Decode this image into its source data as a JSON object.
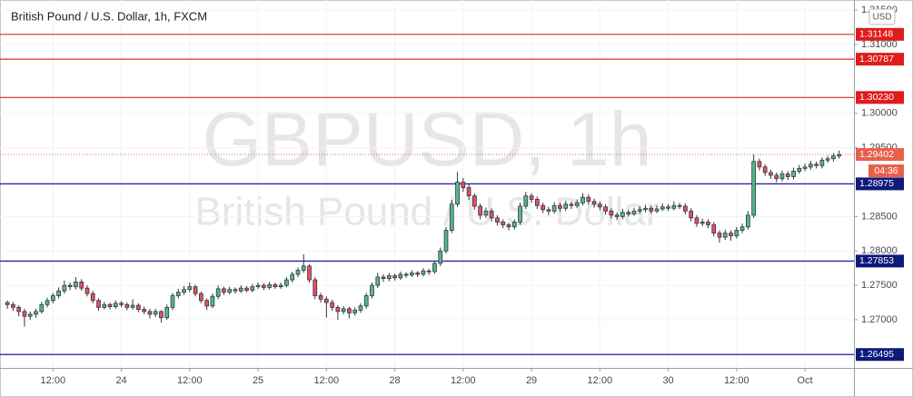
{
  "chart_data": {
    "type": "candlestick",
    "title": "British Pound / U.S. Dollar, 1h, FXCM",
    "currency": "USD",
    "watermark": {
      "symbol": "GBPUSD, 1h",
      "description": "British Pound / U.S. Dollar"
    },
    "up_color": "#53b987",
    "down_color": "#eb4d5c",
    "wick_color": "#2f3640",
    "xlim": [
      -1.3,
      148.6
    ],
    "xticks": [
      {
        "value": 8,
        "label": "12:00"
      },
      {
        "value": 20,
        "label": "24"
      },
      {
        "value": 32,
        "label": "12:00"
      },
      {
        "value": 44,
        "label": "25"
      },
      {
        "value": 56,
        "label": "12:00"
      },
      {
        "value": 68,
        "label": "28"
      },
      {
        "value": 80,
        "label": "12:00"
      },
      {
        "value": 92,
        "label": "29"
      },
      {
        "value": 104,
        "label": "12:00"
      },
      {
        "value": 116,
        "label": "30"
      },
      {
        "value": 128,
        "label": "12:00"
      },
      {
        "value": 140,
        "label": "Oct"
      }
    ],
    "ylim": [
      1.263,
      1.31647
    ],
    "yticks": [
      {
        "value": 1.27,
        "label": "1.27000"
      },
      {
        "value": 1.275,
        "label": "1.27500"
      },
      {
        "value": 1.28,
        "label": "1.28000"
      },
      {
        "value": 1.285,
        "label": "1.28500"
      },
      {
        "value": 1.295,
        "label": "1.29500"
      },
      {
        "value": 1.3,
        "label": "1.30000"
      },
      {
        "value": 1.31,
        "label": "1.31000"
      },
      {
        "value": 1.315,
        "label": "1.31500"
      }
    ],
    "grid": true,
    "levels": {
      "values": [
        1.31148,
        1.30787,
        1.3023,
        1.28975,
        1.27853,
        1.26495
      ],
      "value_labels": [
        "1.31148",
        "1.30787",
        "1.30230",
        "1.28975",
        "1.27853",
        "1.26495"
      ],
      "colors": [
        "#d32f2f",
        "#d32f2f",
        "#d32f2f",
        "#1c1c9c",
        "#1c1c9c",
        "#1c1c9c"
      ],
      "label_colors": [
        "#e01b1b",
        "#e01b1b",
        "#e01b1b",
        "#0d1a7a",
        "#0d1a7a",
        "#0d1a7a"
      ]
    },
    "last_price": 1.29402,
    "last_price_color": "#e8604c",
    "countdown": "04:36",
    "candles": [
      [
        1.2725,
        1.2728,
        1.2716,
        1.2722
      ],
      [
        1.2722,
        1.2726,
        1.2713,
        1.2718
      ],
      [
        1.2718,
        1.2721,
        1.2705,
        1.2712
      ],
      [
        1.2712,
        1.2716,
        1.269,
        1.2705
      ],
      [
        1.2705,
        1.2712,
        1.27,
        1.2708
      ],
      [
        1.2708,
        1.2716,
        1.2703,
        1.2712
      ],
      [
        1.2712,
        1.2726,
        1.2709,
        1.2722
      ],
      [
        1.2722,
        1.2732,
        1.2718,
        1.2728
      ],
      [
        1.2728,
        1.2739,
        1.2724,
        1.2735
      ],
      [
        1.2735,
        1.2747,
        1.2731,
        1.2742
      ],
      [
        1.2742,
        1.2757,
        1.2738,
        1.275
      ],
      [
        1.275,
        1.2754,
        1.2743,
        1.2748
      ],
      [
        1.2748,
        1.2762,
        1.2744,
        1.2755
      ],
      [
        1.2755,
        1.2759,
        1.2742,
        1.2746
      ],
      [
        1.2746,
        1.275,
        1.2734,
        1.2738
      ],
      [
        1.2738,
        1.2742,
        1.2724,
        1.2728
      ],
      [
        1.2728,
        1.2731,
        1.2713,
        1.2718
      ],
      [
        1.2718,
        1.2726,
        1.2715,
        1.2722
      ],
      [
        1.2722,
        1.2725,
        1.2715,
        1.2719
      ],
      [
        1.2719,
        1.2728,
        1.2716,
        1.2724
      ],
      [
        1.2724,
        1.2727,
        1.2718,
        1.2722
      ],
      [
        1.2722,
        1.2725,
        1.2714,
        1.2718
      ],
      [
        1.2718,
        1.273,
        1.2715,
        1.2721
      ],
      [
        1.2721,
        1.2724,
        1.2711,
        1.2715
      ],
      [
        1.2715,
        1.2719,
        1.2708,
        1.2712
      ],
      [
        1.2712,
        1.2716,
        1.2702,
        1.2708
      ],
      [
        1.2708,
        1.2716,
        1.2704,
        1.2712
      ],
      [
        1.2712,
        1.2714,
        1.2696,
        1.2703
      ],
      [
        1.2703,
        1.2722,
        1.27,
        1.2718
      ],
      [
        1.2718,
        1.2739,
        1.2714,
        1.2735
      ],
      [
        1.2735,
        1.2745,
        1.2731,
        1.274
      ],
      [
        1.274,
        1.2749,
        1.2736,
        1.2744
      ],
      [
        1.2744,
        1.2754,
        1.274,
        1.2748
      ],
      [
        1.2748,
        1.2751,
        1.2734,
        1.2738
      ],
      [
        1.2738,
        1.2741,
        1.2724,
        1.2728
      ],
      [
        1.2728,
        1.2731,
        1.2714,
        1.272
      ],
      [
        1.272,
        1.2738,
        1.2717,
        1.2734
      ],
      [
        1.2734,
        1.275,
        1.273,
        1.2745
      ],
      [
        1.2745,
        1.2748,
        1.2736,
        1.274
      ],
      [
        1.274,
        1.2748,
        1.2737,
        1.2744
      ],
      [
        1.2744,
        1.2747,
        1.2738,
        1.2742
      ],
      [
        1.2742,
        1.275,
        1.2739,
        1.2746
      ],
      [
        1.2746,
        1.2749,
        1.274,
        1.2743
      ],
      [
        1.2743,
        1.2752,
        1.274,
        1.2748
      ],
      [
        1.2748,
        1.2754,
        1.2745,
        1.275
      ],
      [
        1.275,
        1.2753,
        1.2743,
        1.2747
      ],
      [
        1.2747,
        1.2755,
        1.2744,
        1.2751
      ],
      [
        1.2751,
        1.2754,
        1.2745,
        1.2748
      ],
      [
        1.2748,
        1.2754,
        1.2745,
        1.275
      ],
      [
        1.275,
        1.2762,
        1.2747,
        1.2758
      ],
      [
        1.2758,
        1.277,
        1.2754,
        1.2766
      ],
      [
        1.2766,
        1.2776,
        1.2762,
        1.2772
      ],
      [
        1.2772,
        1.2795,
        1.2768,
        1.2778
      ],
      [
        1.2778,
        1.2781,
        1.2754,
        1.2758
      ],
      [
        1.2758,
        1.2762,
        1.273,
        1.2735
      ],
      [
        1.2735,
        1.2739,
        1.2725,
        1.273
      ],
      [
        1.273,
        1.2734,
        1.2703,
        1.2725
      ],
      [
        1.2725,
        1.2729,
        1.2713,
        1.2718
      ],
      [
        1.2718,
        1.2721,
        1.27,
        1.2712
      ],
      [
        1.2712,
        1.272,
        1.2708,
        1.2716
      ],
      [
        1.2716,
        1.2719,
        1.2702,
        1.271
      ],
      [
        1.271,
        1.2718,
        1.2706,
        1.2714
      ],
      [
        1.2714,
        1.2724,
        1.271,
        1.272
      ],
      [
        1.272,
        1.2739,
        1.2716,
        1.2735
      ],
      [
        1.2735,
        1.2754,
        1.2731,
        1.275
      ],
      [
        1.275,
        1.2768,
        1.2746,
        1.2762
      ],
      [
        1.2762,
        1.2766,
        1.2755,
        1.276
      ],
      [
        1.276,
        1.2768,
        1.2756,
        1.2764
      ],
      [
        1.2764,
        1.2767,
        1.2757,
        1.2761
      ],
      [
        1.2761,
        1.277,
        1.2758,
        1.2766
      ],
      [
        1.2766,
        1.2769,
        1.2761,
        1.2765
      ],
      [
        1.2765,
        1.2772,
        1.2762,
        1.2768
      ],
      [
        1.2768,
        1.2771,
        1.2762,
        1.2766
      ],
      [
        1.2766,
        1.2775,
        1.2763,
        1.2771
      ],
      [
        1.2771,
        1.2774,
        1.2765,
        1.277
      ],
      [
        1.277,
        1.2786,
        1.2767,
        1.2782
      ],
      [
        1.2782,
        1.2805,
        1.2778,
        1.28
      ],
      [
        1.28,
        1.2835,
        1.2796,
        1.283
      ],
      [
        1.283,
        1.2874,
        1.2826,
        1.2868
      ],
      [
        1.2868,
        1.2915,
        1.2864,
        1.29
      ],
      [
        1.29,
        1.2906,
        1.2886,
        1.2892
      ],
      [
        1.2892,
        1.2897,
        1.2874,
        1.288
      ],
      [
        1.288,
        1.2884,
        1.286,
        1.2865
      ],
      [
        1.2865,
        1.2869,
        1.2846,
        1.2852
      ],
      [
        1.2852,
        1.2863,
        1.2848,
        1.2858
      ],
      [
        1.2858,
        1.2862,
        1.2843,
        1.2848
      ],
      [
        1.2848,
        1.2852,
        1.2837,
        1.2842
      ],
      [
        1.2842,
        1.2846,
        1.2833,
        1.2838
      ],
      [
        1.2838,
        1.2841,
        1.283,
        1.2835
      ],
      [
        1.2835,
        1.2846,
        1.2831,
        1.2842
      ],
      [
        1.2842,
        1.287,
        1.2838,
        1.2865
      ],
      [
        1.2865,
        1.2886,
        1.2861,
        1.288
      ],
      [
        1.288,
        1.2884,
        1.287,
        1.2875
      ],
      [
        1.2875,
        1.2879,
        1.2861,
        1.2866
      ],
      [
        1.2866,
        1.287,
        1.2855,
        1.286
      ],
      [
        1.286,
        1.2864,
        1.2852,
        1.2858
      ],
      [
        1.2858,
        1.2871,
        1.2854,
        1.2866
      ],
      [
        1.2866,
        1.287,
        1.2857,
        1.2862
      ],
      [
        1.2862,
        1.2873,
        1.2858,
        1.2868
      ],
      [
        1.2868,
        1.2872,
        1.2861,
        1.2866
      ],
      [
        1.2866,
        1.2875,
        1.2862,
        1.287
      ],
      [
        1.287,
        1.2884,
        1.2866,
        1.2878
      ],
      [
        1.2878,
        1.2882,
        1.2867,
        1.2872
      ],
      [
        1.2872,
        1.2876,
        1.2863,
        1.2868
      ],
      [
        1.2868,
        1.2872,
        1.2859,
        1.2864
      ],
      [
        1.2864,
        1.2868,
        1.2853,
        1.2858
      ],
      [
        1.2858,
        1.2862,
        1.2847,
        1.2852
      ],
      [
        1.2852,
        1.2856,
        1.2845,
        1.285
      ],
      [
        1.285,
        1.2861,
        1.2846,
        1.2856
      ],
      [
        1.2856,
        1.286,
        1.285,
        1.2854
      ],
      [
        1.2854,
        1.2863,
        1.2851,
        1.2858
      ],
      [
        1.2858,
        1.2865,
        1.2854,
        1.286
      ],
      [
        1.286,
        1.2867,
        1.2856,
        1.2862
      ],
      [
        1.2862,
        1.2866,
        1.2854,
        1.2858
      ],
      [
        1.2858,
        1.2866,
        1.2855,
        1.2861
      ],
      [
        1.2861,
        1.2869,
        1.2858,
        1.2864
      ],
      [
        1.2864,
        1.2868,
        1.2858,
        1.2862
      ],
      [
        1.2862,
        1.2872,
        1.2859,
        1.2866
      ],
      [
        1.2866,
        1.287,
        1.2861,
        1.2865
      ],
      [
        1.2865,
        1.2869,
        1.2853,
        1.2858
      ],
      [
        1.2858,
        1.2862,
        1.2843,
        1.2848
      ],
      [
        1.2848,
        1.2852,
        1.2835,
        1.284
      ],
      [
        1.284,
        1.2847,
        1.2836,
        1.2842
      ],
      [
        1.2842,
        1.2846,
        1.2833,
        1.2838
      ],
      [
        1.2838,
        1.2842,
        1.2821,
        1.2826
      ],
      [
        1.2826,
        1.283,
        1.2812,
        1.282
      ],
      [
        1.282,
        1.2831,
        1.2816,
        1.2826
      ],
      [
        1.2826,
        1.283,
        1.2815,
        1.2822
      ],
      [
        1.2822,
        1.2835,
        1.2818,
        1.283
      ],
      [
        1.283,
        1.284,
        1.2826,
        1.2835
      ],
      [
        1.2835,
        1.2858,
        1.2831,
        1.2852
      ],
      [
        1.2852,
        1.294,
        1.2848,
        1.293
      ],
      [
        1.293,
        1.2934,
        1.2917,
        1.2922
      ],
      [
        1.2922,
        1.2926,
        1.2909,
        1.2914
      ],
      [
        1.2914,
        1.2918,
        1.2905,
        1.291
      ],
      [
        1.291,
        1.2914,
        1.29,
        1.2905
      ],
      [
        1.2905,
        1.2917,
        1.2901,
        1.2912
      ],
      [
        1.2912,
        1.2916,
        1.2903,
        1.2908
      ],
      [
        1.2908,
        1.2921,
        1.2904,
        1.2916
      ],
      [
        1.2916,
        1.2925,
        1.2912,
        1.292
      ],
      [
        1.292,
        1.2927,
        1.2916,
        1.2922
      ],
      [
        1.2922,
        1.2931,
        1.2918,
        1.2926
      ],
      [
        1.2926,
        1.293,
        1.292,
        1.2924
      ],
      [
        1.2924,
        1.2936,
        1.292,
        1.2932
      ],
      [
        1.2932,
        1.2938,
        1.2928,
        1.2934
      ],
      [
        1.2934,
        1.2942,
        1.293,
        1.2938
      ],
      [
        1.2938,
        1.2946,
        1.2934,
        1.29402
      ]
    ]
  }
}
